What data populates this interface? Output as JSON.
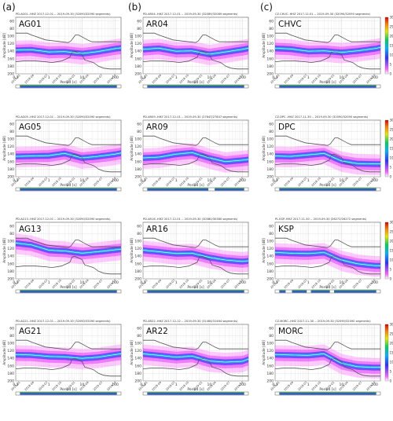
{
  "panel_labels": [
    "(a)",
    "(b)",
    "(c)"
  ],
  "colorbar": {
    "label": "[%]",
    "ticks": [
      "0",
      "5",
      "10",
      "15",
      "20",
      "25",
      "30"
    ]
  },
  "common_axes": {
    "ylabel": "Amplitude [dB]",
    "xlabel": "Period [s]",
    "y_ticks": [
      "60",
      "80",
      "100",
      "120",
      "140",
      "160",
      "180",
      "200"
    ],
    "x_ticks": [
      "0.1",
      "1",
      "10",
      "100"
    ]
  },
  "chart_data": [
    {
      "type": "heatmap",
      "station": "AG01",
      "header": "PD.AG01..HHZ   2017-12-01 -- 2019-09-30   (32090/32090 segments)",
      "date_ticks": [
        "2018-01",
        "2018-04",
        "2018-07",
        "2018-10",
        "2019-01",
        "2019-04",
        "2019-07",
        "2019-10"
      ],
      "xlim": [
        0.1,
        150
      ],
      "ylim": [
        200,
        50
      ],
      "log_x": true,
      "mode_curve": {
        "x": [
          0.1,
          0.3,
          1,
          3,
          10,
          30,
          100,
          150
        ],
        "y": [
          137,
          136,
          142,
          141,
          146,
          141,
          133,
          131
        ]
      },
      "timeline_gaps": []
    },
    {
      "type": "heatmap",
      "station": "AR04",
      "header": "PD.AR04..HHZ   2017-12-01 -- 2019-09-30   (32089/32089 segments)",
      "date_ticks": [
        "2018-01",
        "2018-04",
        "2018-07",
        "2018-10",
        "2019-01",
        "2019-04",
        "2019-07",
        "2019-10"
      ],
      "xlim": [
        0.1,
        150
      ],
      "ylim": [
        200,
        50
      ],
      "log_x": true,
      "mode_curve": {
        "x": [
          0.1,
          0.3,
          1,
          3,
          10,
          30,
          100,
          150
        ],
        "y": [
          135,
          132,
          140,
          139,
          148,
          142,
          135,
          132
        ]
      },
      "timeline_gaps": []
    },
    {
      "type": "heatmap",
      "station": "CHVC",
      "header": "CZ.CHVC..HHZ   2017-12-01 -- 2019-09-30   (32090/32090 segments)",
      "date_ticks": [
        "2018-01",
        "2018-04",
        "2018-07",
        "2018-10",
        "2019-01",
        "2019-04",
        "2019-07",
        "2019-10"
      ],
      "xlim": [
        0.1,
        150
      ],
      "ylim": [
        200,
        50
      ],
      "log_x": true,
      "mode_curve": {
        "x": [
          0.1,
          0.3,
          1,
          3,
          10,
          30,
          100,
          150
        ],
        "y": [
          132,
          134,
          140,
          139,
          143,
          139,
          133,
          130
        ]
      },
      "timeline_gaps": []
    },
    {
      "type": "heatmap",
      "station": "AG05",
      "header": "PD.AG05..HHZ   2017-12-01 -- 2019-09-30   (32090/32090 segments)",
      "date_ticks": [
        "2018-01",
        "2018-04",
        "2018-07",
        "2018-10",
        "2019-01",
        "2019-04",
        "2019-07",
        "2019-10"
      ],
      "xlim": [
        0.1,
        150
      ],
      "ylim": [
        200,
        50
      ],
      "log_x": true,
      "mode_curve": {
        "x": [
          0.1,
          0.3,
          1,
          3,
          10,
          30,
          100,
          150
        ],
        "y": [
          146,
          145,
          144,
          138,
          150,
          146,
          140,
          137
        ]
      },
      "timeline_gaps": []
    },
    {
      "type": "heatmap",
      "station": "AR09",
      "header": "PD.AR09..HHZ   2017-12-01 -- 2019-09-30   (27847/27847 segments)",
      "date_ticks": [
        "2018-01",
        "2018-04",
        "2018-07",
        "2018-10",
        "2019-01",
        "2019-04",
        "2019-07",
        "2019-10"
      ],
      "xlim": [
        0.1,
        150
      ],
      "ylim": [
        200,
        50
      ],
      "log_x": true,
      "mode_curve": {
        "x": [
          0.1,
          0.3,
          1,
          3,
          10,
          30,
          100,
          150
        ],
        "y": [
          150,
          148,
          140,
          136,
          150,
          160,
          156,
          154
        ]
      },
      "timeline_gaps": [
        [
          0.62,
          0.68
        ]
      ]
    },
    {
      "type": "heatmap",
      "station": "DPC",
      "header": "CZ.DPC..HHZ   2017-11-30 -- 2019-09-30   (32090/32090 segments)",
      "date_ticks": [
        "2018-01",
        "2018-04",
        "2018-07",
        "2018-10",
        "2019-01",
        "2019-04",
        "2019-07",
        "2019-10"
      ],
      "xlim": [
        0.1,
        150
      ],
      "ylim": [
        200,
        50
      ],
      "log_x": true,
      "mode_curve": {
        "x": [
          0.1,
          0.3,
          1,
          3,
          10,
          30,
          100,
          150
        ],
        "y": [
          145,
          146,
          142,
          138,
          158,
          165,
          166,
          166
        ]
      },
      "timeline_gaps": []
    },
    {
      "type": "heatmap",
      "station": "AG13",
      "header": "PD.AG13..HHZ   2017-12-01 -- 2019-09-30   (32090/32090 segments)",
      "date_ticks": [
        "2018-01",
        "2018-04",
        "2018-07",
        "2018-10",
        "2019-01",
        "2019-04",
        "2019-07",
        "2019-10"
      ],
      "xlim": [
        0.1,
        150
      ],
      "ylim": [
        200,
        50
      ],
      "log_x": true,
      "mode_curve": {
        "x": [
          0.1,
          0.3,
          1,
          3,
          10,
          30,
          100,
          150
        ],
        "y": [
          105,
          110,
          124,
          126,
          132,
          128,
          123,
          121
        ]
      },
      "timeline_gaps": []
    },
    {
      "type": "heatmap",
      "station": "AR16",
      "header": "PD.AR16..HHZ   2017-12-01 -- 2019-09-30   (30380/30380 segments)",
      "date_ticks": [
        "2018-01",
        "2018-04",
        "2018-07",
        "2018-10",
        "2019-01",
        "2019-04",
        "2019-07",
        "2019-10"
      ],
      "xlim": [
        0.1,
        150
      ],
      "ylim": [
        200,
        50
      ],
      "log_x": true,
      "mode_curve": {
        "x": [
          0.1,
          0.3,
          1,
          3,
          10,
          30,
          100,
          150
        ],
        "y": [
          124,
          128,
          133,
          132,
          143,
          150,
          154,
          152
        ]
      },
      "timeline_gaps": []
    },
    {
      "type": "heatmap",
      "station": "KSP",
      "header": "PL.KSP..HHZ   2017-11-30 -- 2019-09-30   (26272/26272 segments)",
      "date_ticks": [
        "2018-01",
        "2018-04",
        "2018-07",
        "2018-10",
        "2019-01",
        "2019-04",
        "2019-07",
        "2019-10"
      ],
      "xlim": [
        0.1,
        150
      ],
      "ylim": [
        200,
        50
      ],
      "log_x": true,
      "mode_curve": {
        "x": [
          0.1,
          0.3,
          1,
          3,
          10,
          30,
          100,
          150
        ],
        "y": [
          130,
          132,
          133,
          130,
          150,
          160,
          165,
          165
        ]
      },
      "timeline_gaps": [
        [
          0.1,
          0.16
        ],
        [
          0.3,
          0.34
        ],
        [
          0.52,
          0.56
        ]
      ]
    },
    {
      "type": "heatmap",
      "station": "AG21",
      "header": "PD.AG21..HHZ   2017-12-01 -- 2019-09-30   (32090/32090 segments)",
      "date_ticks": [
        "2018-01",
        "2018-04",
        "2018-07",
        "2018-10",
        "2019-01",
        "2019-04",
        "2019-07",
        "2019-10"
      ],
      "xlim": [
        0.1,
        150
      ],
      "ylim": [
        200,
        50
      ],
      "log_x": true,
      "mode_curve": {
        "x": [
          0.1,
          0.3,
          1,
          3,
          10,
          30,
          100,
          150
        ],
        "y": [
          130,
          131,
          135,
          136,
          140,
          137,
          130,
          128
        ]
      },
      "timeline_gaps": []
    },
    {
      "type": "heatmap",
      "station": "AR22",
      "header": "PD.AR22..HHZ   2017-12-12 -- 2019-09-30   (31464/31464 segments)",
      "date_ticks": [
        "2018-01",
        "2018-04",
        "2018-07",
        "2018-10",
        "2019-01",
        "2019-04",
        "2019-07",
        "2019-10"
      ],
      "xlim": [
        0.1,
        150
      ],
      "ylim": [
        200,
        50
      ],
      "log_x": true,
      "mode_curve": {
        "x": [
          0.1,
          0.3,
          1,
          3,
          10,
          30,
          100,
          150
        ],
        "y": [
          128,
          132,
          137,
          134,
          147,
          150,
          148,
          142
        ]
      },
      "timeline_gaps": []
    },
    {
      "type": "heatmap",
      "station": "MORC",
      "header": "CZ.MORC..HHZ   2017-11-30 -- 2019-09-30   (32090/32090 segments)",
      "date_ticks": [
        "2018-01",
        "2018-04",
        "2018-07",
        "2018-10",
        "2019-01",
        "2019-04",
        "2019-07",
        "2019-10"
      ],
      "xlim": [
        0.1,
        150
      ],
      "ylim": [
        200,
        50
      ],
      "log_x": true,
      "mode_curve": {
        "x": [
          0.1,
          0.3,
          1,
          3,
          10,
          30,
          100,
          150
        ],
        "y": [
          130,
          131,
          132,
          128,
          153,
          162,
          164,
          164
        ]
      },
      "timeline_gaps": []
    }
  ]
}
